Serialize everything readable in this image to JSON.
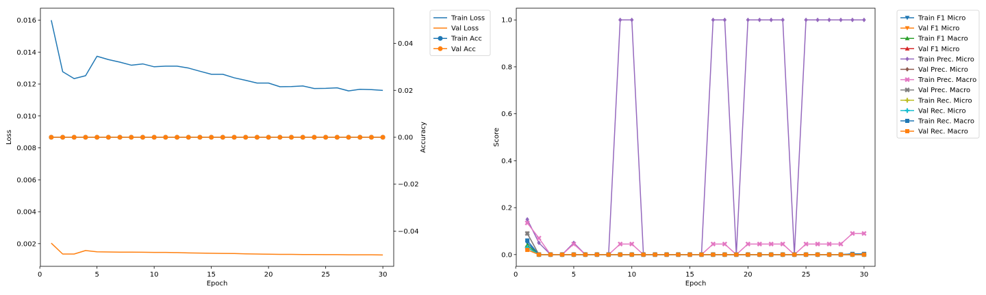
{
  "chart_data": [
    {
      "type": "line",
      "xlabel": "Epoch",
      "ylabel": "Loss",
      "y2label": "Accuracy",
      "xlim": [
        0.05,
        30.95
      ],
      "ylim": [
        0.00058,
        0.01675
      ],
      "y2lim": [
        -0.055,
        0.055
      ],
      "xticks": [
        0,
        5,
        10,
        15,
        20,
        25,
        30
      ],
      "yticks": [
        0.002,
        0.004,
        0.006,
        0.008,
        0.01,
        0.012,
        0.014,
        0.016
      ],
      "yticklabels": [
        "0.002",
        "0.004",
        "0.006",
        "0.008",
        "0.010",
        "0.012",
        "0.014",
        "0.016"
      ],
      "y2ticks": [
        -0.04,
        -0.02,
        0.0,
        0.02,
        0.04
      ],
      "y2ticklabels": [
        "−0.04",
        "−0.02",
        "0.00",
        "0.02",
        "0.04"
      ],
      "x": [
        1,
        2,
        3,
        4,
        5,
        6,
        7,
        8,
        9,
        10,
        11,
        12,
        13,
        14,
        15,
        16,
        17,
        18,
        19,
        20,
        21,
        22,
        23,
        24,
        25,
        26,
        27,
        28,
        29,
        30
      ],
      "legend_position": "outside-top-right",
      "series": [
        {
          "name": "Train Loss",
          "axis": "left",
          "color": "#1f77b4",
          "marker": "none",
          "values": [
            0.016,
            0.01277,
            0.01234,
            0.01252,
            0.01374,
            0.01353,
            0.01337,
            0.01318,
            0.01326,
            0.01308,
            0.01312,
            0.01312,
            0.013,
            0.0128,
            0.01261,
            0.01261,
            0.01239,
            0.01223,
            0.01206,
            0.01206,
            0.01183,
            0.01184,
            0.01188,
            0.01172,
            0.01173,
            0.01176,
            0.01157,
            0.01167,
            0.01165,
            0.0116
          ]
        },
        {
          "name": "Val Loss",
          "axis": "left",
          "color": "#ff7f0e",
          "marker": "none",
          "values": [
            0.00203,
            0.00135,
            0.00135,
            0.00157,
            0.00149,
            0.00148,
            0.00147,
            0.00147,
            0.00146,
            0.00145,
            0.00145,
            0.00144,
            0.00142,
            0.00141,
            0.0014,
            0.00139,
            0.00138,
            0.00136,
            0.00135,
            0.00134,
            0.00133,
            0.00133,
            0.00132,
            0.00132,
            0.00131,
            0.00131,
            0.0013,
            0.0013,
            0.0013,
            0.00129
          ]
        },
        {
          "name": "Train Acc",
          "axis": "right",
          "color": "#1f77b4",
          "marker": "circle",
          "values": [
            0,
            0,
            0,
            0,
            0,
            0,
            0,
            0,
            0,
            0,
            0,
            0,
            0,
            0,
            0,
            0,
            0,
            0,
            0,
            0,
            0,
            0,
            0,
            0,
            0,
            0,
            0,
            0,
            0,
            0
          ]
        },
        {
          "name": "Val Acc",
          "axis": "right",
          "color": "#ff7f0e",
          "marker": "circle",
          "values": [
            0,
            0,
            0,
            0,
            0,
            0,
            0,
            0,
            0,
            0,
            0,
            0,
            0,
            0,
            0,
            0,
            0,
            0,
            0,
            0,
            0,
            0,
            0,
            0,
            0,
            0,
            0,
            0,
            0,
            0
          ]
        }
      ]
    },
    {
      "type": "line",
      "xlabel": "Epoch",
      "ylabel": "Score",
      "xlim": [
        0.05,
        30.95
      ],
      "ylim": [
        -0.05,
        1.05
      ],
      "xticks": [
        0,
        5,
        10,
        15,
        20,
        25,
        30
      ],
      "yticks": [
        0.0,
        0.2,
        0.4,
        0.6,
        0.8,
        1.0
      ],
      "yticklabels": [
        "0.0",
        "0.2",
        "0.4",
        "0.6",
        "0.8",
        "1.0"
      ],
      "x": [
        1,
        2,
        3,
        4,
        5,
        6,
        7,
        8,
        9,
        10,
        11,
        12,
        13,
        14,
        15,
        16,
        17,
        18,
        19,
        20,
        21,
        22,
        23,
        24,
        25,
        26,
        27,
        28,
        29,
        30
      ],
      "legend_position": "outside-top-right",
      "series": [
        {
          "name": "Train F1 Micro",
          "color": "#1f77b4",
          "marker": "tri-down",
          "values": [
            0.05,
            0,
            0,
            0,
            0,
            0,
            0,
            0,
            0,
            0,
            0,
            0,
            0,
            0,
            0,
            0,
            0,
            0,
            0,
            0,
            0,
            0,
            0,
            0,
            0,
            0,
            0,
            0,
            0.003,
            0.003
          ]
        },
        {
          "name": "Val F1 Micro",
          "color": "#ff7f0e",
          "marker": "tri-down",
          "values": [
            0.03,
            0,
            0,
            0,
            0,
            0,
            0,
            0,
            0,
            0,
            0,
            0,
            0,
            0,
            0,
            0,
            0,
            0,
            0,
            0,
            0,
            0,
            0,
            0,
            0,
            0,
            0,
            0,
            0,
            0
          ]
        },
        {
          "name": "Train F1 Macro",
          "color": "#2ca02c",
          "marker": "tri-up",
          "values": [
            0.04,
            0,
            0,
            0,
            0,
            0,
            0,
            0,
            0,
            0,
            0,
            0,
            0,
            0,
            0,
            0,
            0,
            0,
            0,
            0,
            0,
            0,
            0,
            0,
            0,
            0,
            0,
            0,
            0,
            0
          ]
        },
        {
          "name": "Val F1 Micro",
          "color": "#d62728",
          "marker": "tri-up",
          "values": [
            0.03,
            0,
            0,
            0,
            0,
            0,
            0,
            0,
            0,
            0,
            0,
            0,
            0,
            0,
            0,
            0,
            0,
            0,
            0,
            0,
            0,
            0,
            0,
            0,
            0,
            0,
            0,
            0,
            0,
            0
          ]
        },
        {
          "name": "Train Prec. Micro",
          "color": "#9467bd",
          "marker": "diamond",
          "values": [
            0.15,
            0.05,
            0,
            0,
            0.05,
            0,
            0,
            0,
            1,
            1,
            0,
            0,
            0,
            0,
            0,
            0,
            1,
            1,
            0,
            1,
            1,
            1,
            1,
            0,
            1,
            1,
            1,
            1,
            1,
            1
          ]
        },
        {
          "name": "Val Prec. Micro",
          "color": "#8c564b",
          "marker": "diamond",
          "values": [
            0.09,
            0,
            0,
            0,
            0,
            0,
            0,
            0,
            0,
            0,
            0,
            0,
            0,
            0,
            0,
            0,
            0,
            0,
            0,
            0,
            0,
            0,
            0,
            0,
            0,
            0,
            0,
            0,
            0,
            0
          ]
        },
        {
          "name": "Train Prec. Macro",
          "color": "#e377c2",
          "marker": "x-cross",
          "values": [
            0.135,
            0.07,
            0,
            0,
            0.045,
            0,
            0,
            0,
            0.045,
            0.045,
            0,
            0,
            0,
            0,
            0,
            0,
            0.045,
            0.045,
            0,
            0.045,
            0.045,
            0.045,
            0.045,
            0,
            0.045,
            0.045,
            0.045,
            0.045,
            0.09,
            0.09
          ]
        },
        {
          "name": "Val Prec. Macro",
          "color": "#7f7f7f",
          "marker": "x-cross",
          "values": [
            0.09,
            0,
            0,
            0,
            0,
            0,
            0,
            0,
            0,
            0,
            0,
            0,
            0,
            0,
            0,
            0,
            0,
            0,
            0,
            0,
            0,
            0,
            0,
            0,
            0,
            0,
            0,
            0,
            0,
            0
          ]
        },
        {
          "name": "Train Rec. Micro",
          "color": "#bcbd22",
          "marker": "plus",
          "values": [
            0.03,
            0,
            0,
            0,
            0,
            0,
            0,
            0,
            0,
            0,
            0,
            0,
            0,
            0,
            0,
            0,
            0,
            0,
            0,
            0,
            0,
            0,
            0,
            0,
            0,
            0,
            0,
            0,
            0,
            0
          ]
        },
        {
          "name": "Val Rec. Micro",
          "color": "#17becf",
          "marker": "plus",
          "values": [
            0.03,
            0,
            0,
            0,
            0,
            0,
            0,
            0,
            0,
            0,
            0,
            0,
            0,
            0,
            0,
            0,
            0,
            0,
            0,
            0,
            0,
            0,
            0,
            0,
            0,
            0,
            0,
            0,
            0,
            0
          ]
        },
        {
          "name": "Train Rec. Macro",
          "color": "#1f77b4",
          "marker": "square",
          "values": [
            0.06,
            0,
            0,
            0,
            0,
            0,
            0,
            0,
            0,
            0,
            0,
            0,
            0,
            0,
            0,
            0,
            0,
            0,
            0,
            0,
            0,
            0,
            0,
            0,
            0,
            0,
            0,
            0,
            0.003,
            0.003
          ]
        },
        {
          "name": "Val Rec. Macro",
          "color": "#ff7f0e",
          "marker": "square",
          "values": [
            0.02,
            0,
            0,
            0,
            0,
            0,
            0,
            0,
            0,
            0,
            0,
            0,
            0,
            0,
            0,
            0,
            0,
            0,
            0,
            0,
            0,
            0,
            0,
            0,
            0,
            0,
            0,
            0,
            0,
            0
          ]
        }
      ]
    }
  ]
}
